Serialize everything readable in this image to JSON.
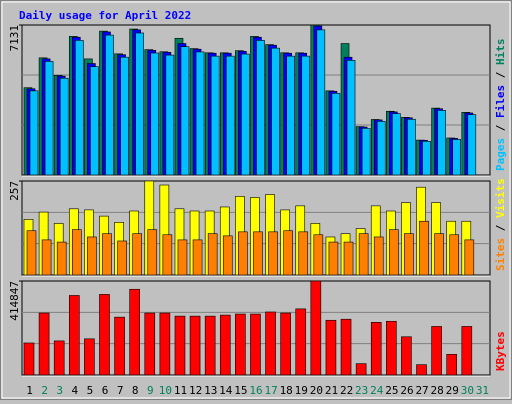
{
  "title": "Daily usage for April 2022",
  "categories": [
    "1",
    "2",
    "3",
    "4",
    "5",
    "6",
    "7",
    "8",
    "9",
    "10",
    "11",
    "12",
    "13",
    "14",
    "15",
    "16",
    "17",
    "18",
    "19",
    "20",
    "21",
    "22",
    "23",
    "24",
    "25",
    "26",
    "27",
    "28",
    "29",
    "30",
    "31"
  ],
  "category_colors": [
    "#000000",
    "#00805c",
    "#00805c",
    "#000000",
    "#000000",
    "#000000",
    "#000000",
    "#000000",
    "#00805c",
    "#00805c",
    "#000000",
    "#000000",
    "#000000",
    "#000000",
    "#000000",
    "#00805c",
    "#00805c",
    "#000000",
    "#000000",
    "#000000",
    "#000000",
    "#000000",
    "#00805c",
    "#00805c",
    "#000000",
    "#000000",
    "#000000",
    "#000000",
    "#000000",
    "#00805c",
    "#00805c"
  ],
  "legend_separator": " / ",
  "chart_data": [
    {
      "type": "bar",
      "ylim": [
        0,
        7131
      ],
      "yticks": [
        7131
      ],
      "series": [
        {
          "name": "Hits",
          "color": "#00805c",
          "values": [
            4150,
            5570,
            4740,
            6590,
            5520,
            6840,
            5760,
            6940,
            5960,
            5860,
            6500,
            6010,
            5810,
            5810,
            5910,
            6590,
            6200,
            5810,
            5810,
            7131,
            4000,
            6250,
            2300,
            2640,
            3030,
            2740,
            1660,
            3180,
            1760,
            2980,
            null
          ]
        },
        {
          "name": "Files",
          "color": "#0000ff",
          "values": [
            4100,
            5520,
            4700,
            6550,
            5300,
            6800,
            5720,
            6900,
            5930,
            5830,
            6250,
            5980,
            5790,
            5790,
            5880,
            6550,
            6170,
            5790,
            5790,
            7080,
            3980,
            5600,
            2280,
            2620,
            3000,
            2720,
            1650,
            3150,
            1740,
            2950,
            null
          ]
        },
        {
          "name": "Pages",
          "color": "#00c0ff",
          "values": [
            4000,
            5400,
            4600,
            6400,
            5150,
            6650,
            5600,
            6750,
            5800,
            5700,
            6100,
            5850,
            5650,
            5650,
            5750,
            6400,
            6030,
            5650,
            5650,
            6900,
            3880,
            5450,
            2220,
            2550,
            2920,
            2650,
            1600,
            3070,
            1690,
            2870,
            null
          ]
        }
      ]
    },
    {
      "type": "bar",
      "ylim": [
        0,
        257
      ],
      "yticks": [
        257
      ],
      "series": [
        {
          "name": "Visits",
          "color": "#ffff00",
          "values": [
            152,
            172,
            141,
            181,
            178,
            161,
            144,
            175,
            257,
            246,
            181,
            175,
            175,
            186,
            215,
            212,
            220,
            178,
            189,
            141,
            104,
            113,
            127,
            189,
            175,
            198,
            240,
            198,
            147,
            147,
            null
          ]
        },
        {
          "name": "Sites",
          "color": "#ff8000",
          "values": [
            121,
            96,
            90,
            124,
            104,
            113,
            93,
            113,
            124,
            110,
            96,
            96,
            113,
            107,
            118,
            118,
            118,
            121,
            118,
            110,
            90,
            90,
            113,
            104,
            124,
            113,
            147,
            113,
            110,
            96,
            null
          ]
        }
      ]
    },
    {
      "type": "bar",
      "ylim": [
        0,
        414847
      ],
      "yticks": [
        414847
      ],
      "series": [
        {
          "name": "KBytes",
          "color": "#ff0000",
          "values": [
            141300,
            273500,
            150400,
            351000,
            159600,
            355600,
            255300,
            378400,
            273500,
            273500,
            259800,
            259800,
            259800,
            264400,
            269000,
            269000,
            278100,
            273500,
            291800,
            414847,
            241600,
            246200,
            50100,
            232500,
            237100,
            168700,
            45600,
            214300,
            91200,
            214300,
            null
          ]
        }
      ]
    }
  ]
}
